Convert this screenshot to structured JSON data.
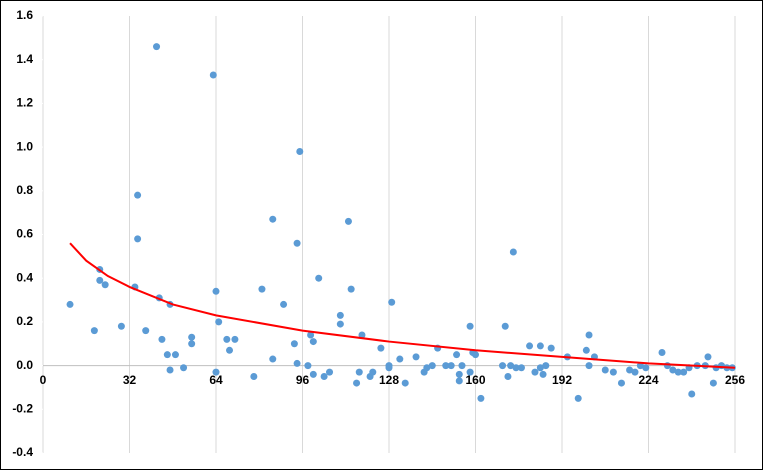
{
  "chart_data": {
    "type": "scatter",
    "xlim": [
      0,
      256
    ],
    "xticks": [
      0,
      32,
      64,
      96,
      128,
      160,
      192,
      224,
      256
    ],
    "ylim": [
      -0.4,
      1.6
    ],
    "yticks": [
      -0.4,
      -0.2,
      {
        "value": 0,
        "label": "0.0"
      },
      0.2,
      0.4,
      0.6,
      0.8,
      {
        "value": 1,
        "label": "1.0"
      },
      1.2,
      1.4,
      1.6
    ],
    "grid": "x",
    "series": [
      {
        "color": "#5b9bd5",
        "x": [
          10,
          19,
          21,
          21,
          23,
          29,
          34,
          35,
          35,
          38,
          42,
          43,
          44,
          46,
          47,
          47,
          49,
          52,
          55,
          55,
          63,
          64,
          65,
          64,
          68,
          69,
          71,
          78,
          81,
          85,
          85,
          89,
          93,
          94,
          94,
          95,
          98,
          99,
          100,
          100,
          102,
          104,
          106,
          110,
          110,
          113,
          114,
          116,
          117,
          118,
          121,
          122,
          125,
          128,
          128,
          129,
          132,
          134,
          138,
          141,
          142,
          144,
          146,
          149,
          151,
          153,
          154,
          154,
          155,
          158,
          158,
          159,
          160,
          162,
          170,
          171,
          172,
          173,
          174,
          175,
          177,
          180,
          182,
          184,
          184,
          185,
          186,
          188,
          194,
          198,
          201,
          202,
          202,
          204,
          208,
          211,
          214,
          217,
          219,
          221,
          223,
          229,
          231,
          233,
          235,
          237,
          239,
          240,
          242,
          245,
          246,
          248,
          249,
          251,
          253,
          255
        ],
        "values": [
          0.28,
          0.16,
          0.39,
          0.44,
          0.37,
          0.18,
          0.36,
          0.58,
          0.78,
          0.16,
          1.46,
          0.31,
          0.12,
          0.05,
          0.28,
          -0.02,
          0.05,
          -0.01,
          0.13,
          0.1,
          1.33,
          0.34,
          0.2,
          -0.03,
          0.12,
          0.07,
          0.12,
          -0.05,
          0.35,
          0.67,
          0.03,
          0.28,
          0.1,
          0.56,
          0.01,
          0.98,
          0,
          0.14,
          0.11,
          -0.04,
          0.4,
          -0.05,
          -0.03,
          0.23,
          0.19,
          0.66,
          0.35,
          -0.08,
          -0.03,
          0.14,
          -0.05,
          -0.03,
          0.08,
          0,
          -0.01,
          0.29,
          0.03,
          -0.08,
          0.04,
          -0.03,
          -0.01,
          0,
          0.08,
          0,
          0,
          0.05,
          -0.04,
          -0.07,
          0,
          -0.03,
          0.18,
          0.06,
          0.05,
          -0.15,
          0,
          0.18,
          -0.05,
          0,
          0.52,
          -0.01,
          -0.01,
          0.09,
          -0.03,
          0.09,
          -0.01,
          -0.04,
          0,
          0.08,
          0.04,
          -0.15,
          0.07,
          0.14,
          0,
          0.04,
          -0.02,
          -0.03,
          -0.08,
          -0.02,
          -0.03,
          0,
          -0.01,
          0.06,
          0,
          -0.02,
          -0.03,
          -0.03,
          -0.01,
          -0.13,
          0,
          0,
          0.04,
          -0.08,
          -0.01,
          0,
          -0.01,
          -0.01
        ]
      },
      {
        "color": "#ff0000",
        "line": true,
        "x": [
          10,
          16,
          24,
          32,
          48,
          64,
          96,
          128,
          160,
          192,
          224,
          256
        ],
        "values": [
          0.56,
          0.48,
          0.41,
          0.36,
          0.28,
          0.23,
          0.16,
          0.11,
          0.07,
          0.04,
          0.01,
          -0.01
        ]
      }
    ]
  }
}
